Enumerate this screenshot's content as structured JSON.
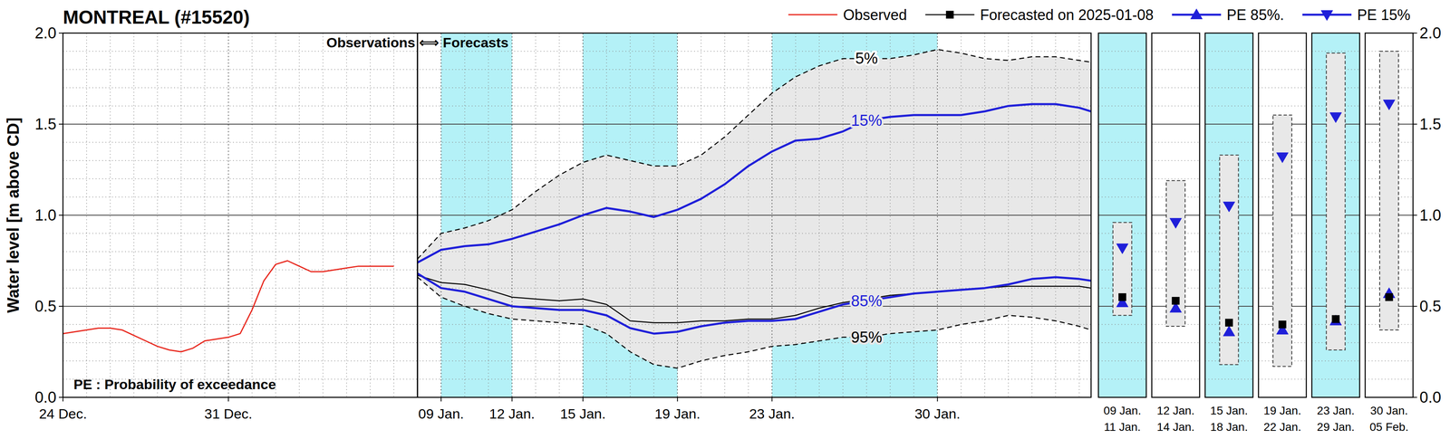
{
  "chart_data": {
    "type": "line",
    "title": "MONTREAL (#15520)",
    "y_label": "Water level [m above CD]",
    "annotations": [
      "Observations ⟺ Forecasts",
      "PE : Probability of exceedance"
    ],
    "xlim": [
      0,
      43.5
    ],
    "xticks": [
      {
        "value": 0,
        "label": "24 Dec."
      },
      {
        "value": 7,
        "label": "31 Dec."
      },
      {
        "value": 16,
        "label": "09 Jan."
      },
      {
        "value": 19,
        "label": "12 Jan."
      },
      {
        "value": 22,
        "label": "15 Jan."
      },
      {
        "value": 26,
        "label": "19 Jan."
      },
      {
        "value": 30,
        "label": "23 Jan."
      },
      {
        "value": 37,
        "label": "30 Jan."
      }
    ],
    "ylim": [
      0,
      2
    ],
    "yticks": [
      {
        "value": 0,
        "label": "0.0"
      },
      {
        "value": 0.5,
        "label": "0.5"
      },
      {
        "value": 1,
        "label": "1.0"
      },
      {
        "value": 1.5,
        "label": "1.5"
      },
      {
        "value": 2,
        "label": "2.0"
      }
    ],
    "grid": true,
    "legend": "top",
    "forecast_start": 15,
    "highlight_color": "#b4f1f7",
    "series": [
      {
        "name": "Observed",
        "color": "#e8281e",
        "line_style": "solid",
        "x": [
          0,
          0.5,
          1,
          1.5,
          2,
          2.5,
          3,
          3.5,
          4,
          4.5,
          5,
          5.5,
          6,
          6.5,
          7,
          7.5,
          8,
          8.5,
          9,
          9.5,
          10,
          10.5,
          11,
          11.5,
          12,
          12.5,
          13,
          13.5,
          14
        ],
        "values": [
          0.35,
          0.36,
          0.37,
          0.38,
          0.38,
          0.37,
          0.34,
          0.31,
          0.28,
          0.26,
          0.25,
          0.27,
          0.31,
          0.32,
          0.33,
          0.35,
          0.48,
          0.64,
          0.73,
          0.75,
          0.72,
          0.69,
          0.69,
          0.7,
          0.71,
          0.72,
          0.72,
          0.72,
          0.72
        ]
      },
      {
        "name": "Forecasted on 2025-01-08",
        "color": "#000000",
        "marker": "square",
        "line_style": "solid",
        "x": [
          15,
          16,
          17,
          18,
          19,
          20,
          21,
          22,
          23,
          24,
          25,
          26,
          27,
          28,
          29,
          30,
          31,
          32,
          33,
          34,
          35,
          36,
          37,
          38,
          39,
          40,
          41,
          42,
          43,
          43.5
        ],
        "values": [
          0.67,
          0.63,
          0.62,
          0.59,
          0.55,
          0.54,
          0.53,
          0.54,
          0.51,
          0.42,
          0.41,
          0.41,
          0.42,
          0.42,
          0.43,
          0.43,
          0.45,
          0.49,
          0.52,
          0.54,
          0.56,
          0.57,
          0.58,
          0.59,
          0.6,
          0.61,
          0.61,
          0.61,
          0.61,
          0.6
        ]
      },
      {
        "name": "PE 85%.",
        "label": "85%",
        "color": "#1f1fd9",
        "marker": "triangle-up",
        "line_style": "solid",
        "x": [
          15,
          16,
          17,
          18,
          19,
          20,
          21,
          22,
          23,
          24,
          25,
          26,
          27,
          28,
          29,
          30,
          31,
          32,
          33,
          34,
          35,
          36,
          37,
          38,
          39,
          40,
          41,
          42,
          43,
          43.5
        ],
        "values": [
          0.68,
          0.6,
          0.58,
          0.54,
          0.5,
          0.49,
          0.48,
          0.48,
          0.45,
          0.38,
          0.35,
          0.36,
          0.39,
          0.41,
          0.42,
          0.42,
          0.43,
          0.47,
          0.51,
          0.53,
          0.55,
          0.57,
          0.58,
          0.59,
          0.6,
          0.62,
          0.65,
          0.66,
          0.65,
          0.64
        ]
      },
      {
        "name": "PE 15%",
        "label": "15%",
        "color": "#1f1fd9",
        "marker": "triangle-down",
        "line_style": "solid",
        "x": [
          15,
          16,
          17,
          18,
          19,
          20,
          21,
          22,
          23,
          24,
          25,
          26,
          27,
          28,
          29,
          30,
          31,
          32,
          33,
          34,
          35,
          36,
          37,
          38,
          39,
          40,
          41,
          42,
          43,
          43.5
        ],
        "values": [
          0.74,
          0.81,
          0.83,
          0.84,
          0.87,
          0.91,
          0.95,
          1.0,
          1.04,
          1.02,
          0.99,
          1.03,
          1.09,
          1.17,
          1.27,
          1.35,
          1.41,
          1.42,
          1.46,
          1.52,
          1.54,
          1.55,
          1.55,
          1.55,
          1.57,
          1.6,
          1.61,
          1.61,
          1.59,
          1.57
        ]
      }
    ],
    "envelope": {
      "color": "#e8e8e8",
      "upper": {
        "label": "5%",
        "line_style": "dashed",
        "x": [
          15,
          16,
          17,
          18,
          19,
          20,
          21,
          22,
          23,
          24,
          25,
          26,
          27,
          28,
          29,
          30,
          31,
          32,
          33,
          34,
          35,
          36,
          37,
          38,
          39,
          40,
          41,
          42,
          43,
          43.5
        ],
        "values": [
          0.76,
          0.9,
          0.93,
          0.97,
          1.03,
          1.13,
          1.22,
          1.29,
          1.33,
          1.3,
          1.27,
          1.27,
          1.33,
          1.43,
          1.55,
          1.67,
          1.76,
          1.82,
          1.86,
          1.86,
          1.86,
          1.88,
          1.91,
          1.89,
          1.86,
          1.85,
          1.87,
          1.87,
          1.85,
          1.84
        ]
      },
      "lower": {
        "label": "95%",
        "line_style": "dashed",
        "x": [
          15,
          16,
          17,
          18,
          19,
          20,
          21,
          22,
          23,
          24,
          25,
          26,
          27,
          28,
          29,
          30,
          31,
          32,
          33,
          34,
          35,
          36,
          37,
          38,
          39,
          40,
          41,
          42,
          43,
          43.5
        ],
        "values": [
          0.66,
          0.55,
          0.5,
          0.46,
          0.43,
          0.42,
          0.41,
          0.4,
          0.35,
          0.25,
          0.18,
          0.16,
          0.2,
          0.23,
          0.25,
          0.28,
          0.29,
          0.31,
          0.33,
          0.33,
          0.35,
          0.36,
          0.37,
          0.4,
          0.42,
          0.45,
          0.44,
          0.42,
          0.39,
          0.37
        ]
      }
    },
    "periods": [
      {
        "start": 16,
        "end": 19,
        "labels": [
          "09 Jan.",
          "11 Jan."
        ],
        "highlight": true,
        "pe5": 0.96,
        "pe15": 0.82,
        "forecast": 0.55,
        "pe85": 0.52,
        "pe95": 0.45
      },
      {
        "start": 19,
        "end": 22,
        "labels": [
          "12 Jan.",
          "14 Jan."
        ],
        "highlight": false,
        "pe5": 1.19,
        "pe15": 0.96,
        "forecast": 0.53,
        "pe85": 0.49,
        "pe95": 0.39
      },
      {
        "start": 22,
        "end": 26,
        "labels": [
          "15 Jan.",
          "18 Jan."
        ],
        "highlight": true,
        "pe5": 1.33,
        "pe15": 1.05,
        "forecast": 0.41,
        "pe85": 0.36,
        "pe95": 0.18
      },
      {
        "start": 26,
        "end": 30,
        "labels": [
          "19 Jan.",
          "22 Jan."
        ],
        "highlight": false,
        "pe5": 1.55,
        "pe15": 1.32,
        "forecast": 0.4,
        "pe85": 0.37,
        "pe95": 0.17
      },
      {
        "start": 30,
        "end": 37,
        "labels": [
          "23 Jan.",
          "29 Jan."
        ],
        "highlight": true,
        "pe5": 1.89,
        "pe15": 1.54,
        "forecast": 0.43,
        "pe85": 0.42,
        "pe95": 0.26
      },
      {
        "start": 37,
        "end": 44,
        "labels": [
          "30 Jan.",
          "05 Feb."
        ],
        "highlight": false,
        "pe5": 1.9,
        "pe15": 1.61,
        "forecast": 0.55,
        "pe85": 0.57,
        "pe95": 0.37
      }
    ]
  }
}
